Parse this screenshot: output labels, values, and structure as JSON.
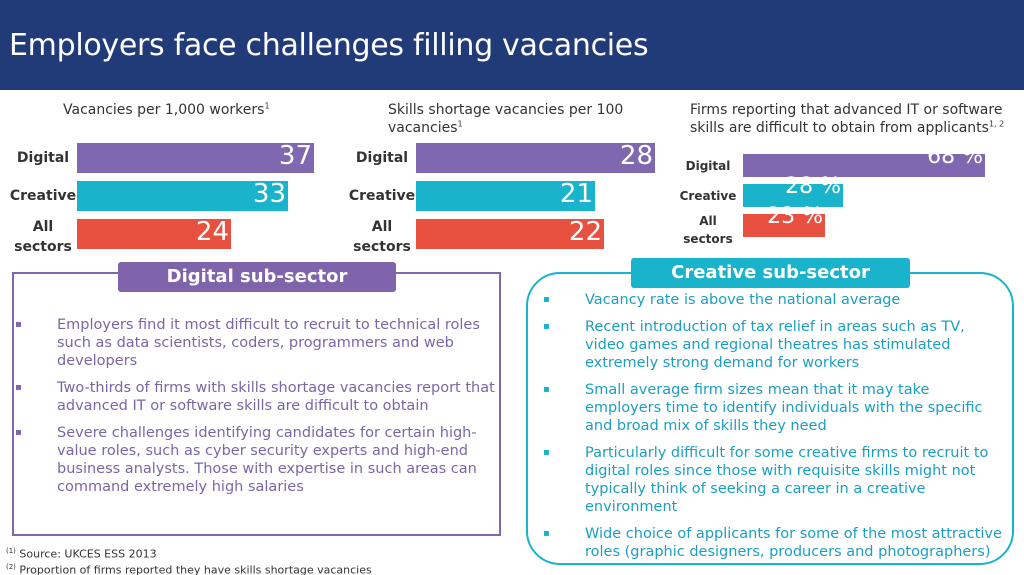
{
  "header": {
    "title": "Employers face challenges filling vacancies"
  },
  "colors": {
    "header": "#213a78",
    "digital": "#8068b0",
    "creative": "#1ab3cc",
    "all_sectors": "#e8513f"
  },
  "chart_data": [
    {
      "type": "bar",
      "title": "Vacancies per 1,000 workers",
      "title_sup": "1",
      "categories": [
        "Digital",
        "Creative",
        "All sectors"
      ],
      "values": [
        37,
        33,
        24
      ],
      "value_labels": [
        "37",
        "33",
        "24"
      ],
      "max": 37
    },
    {
      "type": "bar",
      "title": "Skills shortage vacancies per 100 vacancies",
      "title_sup": "1",
      "categories": [
        "Digital",
        "Creative",
        "All sectors"
      ],
      "values": [
        28,
        21,
        22
      ],
      "value_labels": [
        "28",
        "21",
        "22"
      ],
      "max": 28
    },
    {
      "type": "bar",
      "title": "Firms reporting that advanced IT or software skills are difficult to obtain from applicants",
      "title_sup": "1, 2",
      "categories": [
        "Digital",
        "Creative",
        "All sectors"
      ],
      "values": [
        68,
        28,
        23
      ],
      "value_labels": [
        "68 %",
        "28 %",
        "23 %"
      ],
      "max": 68
    }
  ],
  "digital_panel": {
    "title": "Digital sub-sector",
    "bullets": [
      "Employers find it most difficult to recruit to technical roles such as data scientists, coders, programmers and web developers",
      "Two-thirds of firms with skills shortage vacancies report that advanced IT or software skills are difficult to obtain",
      "Severe challenges identifying candidates for certain high-value roles, such as cyber security experts and high-end business analysts. Those with expertise in such areas can command extremely high salaries"
    ]
  },
  "creative_panel": {
    "title": "Creative sub-sector",
    "bullets": [
      "Vacancy rate is above the national average",
      "Recent introduction of tax relief in areas such as TV, video games and regional theatres has stimulated extremely strong demand for workers",
      "Small average firm sizes mean that it may take employers time to identify individuals with the specific and broad mix of skills they need",
      "Particularly difficult for some creative firms to recruit to digital roles since those with requisite skills might not typically think of seeking a career in a creative environment",
      "Wide choice of applicants for some of the most attractive roles (graphic designers, producers and photographers)"
    ]
  },
  "footnotes": [
    {
      "mark": "(1)",
      "text": "Source: UKCES ESS 2013"
    },
    {
      "mark": "(2)",
      "text": "Proportion of firms reported they have skills shortage vacancies"
    }
  ]
}
